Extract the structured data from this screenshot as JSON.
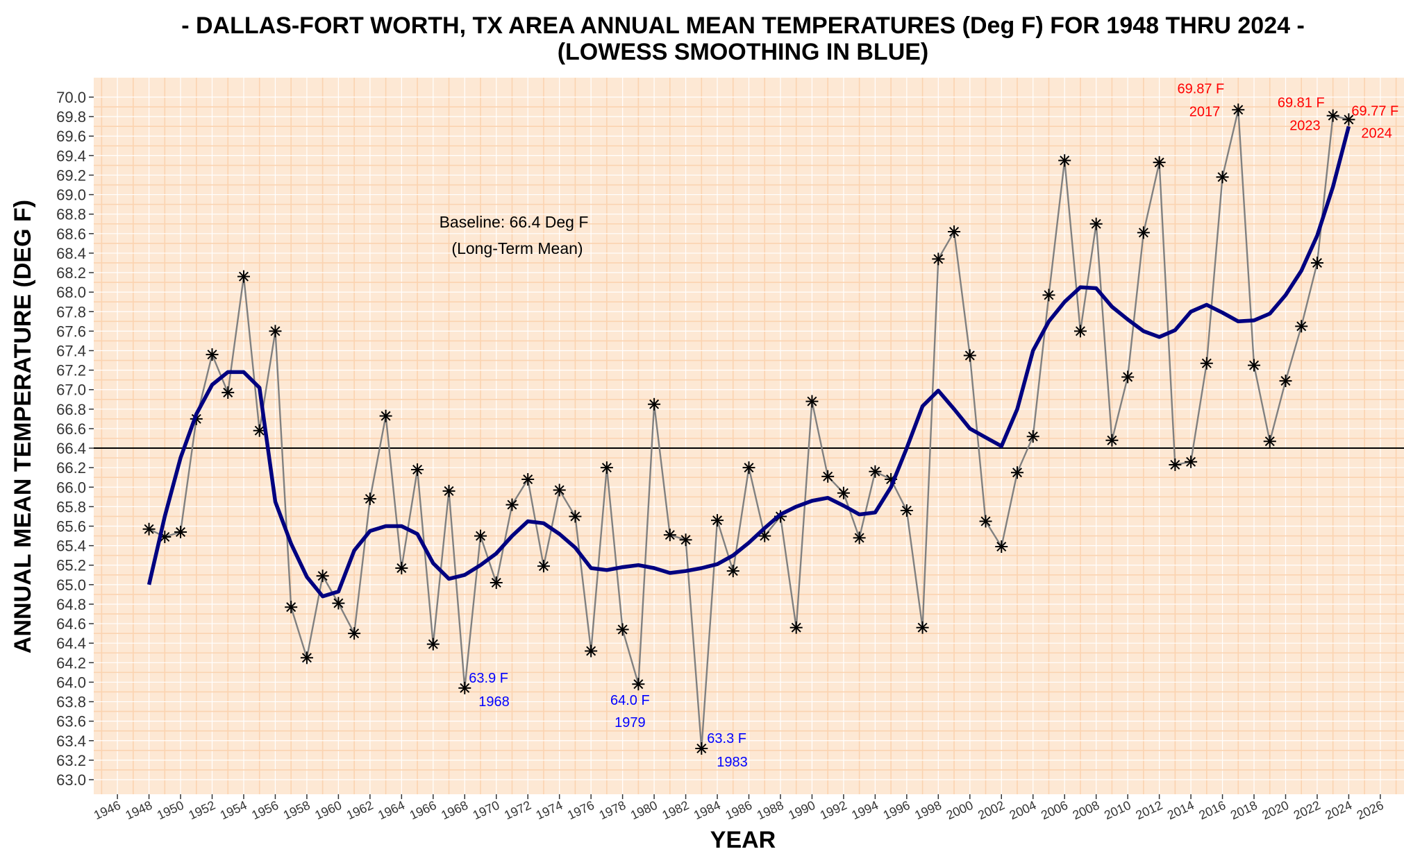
{
  "title_line1": "- DALLAS-FORT WORTH, TX AREA ANNUAL MEAN TEMPERATURES (Deg F) FOR 1948 THRU 2024 -",
  "title_line2": "(LOWESS SMOOTHING IN BLUE)",
  "colors": {
    "panel": "#fde8d4",
    "grid": "#fbd3b0",
    "data_line": "#808080",
    "marker": "#000000",
    "smooth": "#000080",
    "baseline": "#000000",
    "high_annotation": "#ff0000",
    "low_annotation": "#0000ff"
  },
  "chart_data": {
    "type": "line",
    "title": "- DALLAS-FORT WORTH, TX AREA ANNUAL MEAN TEMPERATURES (Deg F) FOR 1948 THRU 2024 - (LOWESS SMOOTHING IN BLUE)",
    "xlabel": "YEAR",
    "ylabel": "ANNUAL MEAN TEMPERATURE (DEG F)",
    "xlim": [
      1944.5,
      2027.5
    ],
    "ylim": [
      63.0,
      70.0
    ],
    "x_ticks": [
      1946,
      1948,
      1950,
      1952,
      1954,
      1956,
      1958,
      1960,
      1962,
      1964,
      1966,
      1968,
      1970,
      1972,
      1974,
      1976,
      1978,
      1980,
      1982,
      1984,
      1986,
      1988,
      1990,
      1992,
      1994,
      1996,
      1998,
      2000,
      2002,
      2004,
      2006,
      2008,
      2010,
      2012,
      2014,
      2016,
      2018,
      2020,
      2022,
      2024,
      2026
    ],
    "y_ticks": [
      63.0,
      63.2,
      63.4,
      63.6,
      63.8,
      64.0,
      64.2,
      64.4,
      64.6,
      64.8,
      65.0,
      65.2,
      65.4,
      65.6,
      65.8,
      66.0,
      66.2,
      66.4,
      66.6,
      66.8,
      67.0,
      67.2,
      67.4,
      67.6,
      67.8,
      68.0,
      68.2,
      68.4,
      68.6,
      68.8,
      69.0,
      69.2,
      69.4,
      69.6,
      69.8,
      70.0
    ],
    "grid": true,
    "baseline": {
      "value": 66.4,
      "label_line1": "Baseline: 66.4 Deg F",
      "label_line2": "(Long-Term Mean)"
    },
    "series": [
      {
        "style": "line-with-asterisk-markers",
        "x": [
          1948,
          1949,
          1950,
          1951,
          1952,
          1953,
          1954,
          1955,
          1956,
          1957,
          1958,
          1959,
          1960,
          1961,
          1962,
          1963,
          1964,
          1965,
          1966,
          1967,
          1968,
          1969,
          1970,
          1971,
          1972,
          1973,
          1974,
          1975,
          1976,
          1977,
          1978,
          1979,
          1980,
          1981,
          1982,
          1983,
          1984,
          1985,
          1986,
          1987,
          1988,
          1989,
          1990,
          1991,
          1992,
          1993,
          1994,
          1995,
          1996,
          1997,
          1998,
          1999,
          2000,
          2001,
          2002,
          2003,
          2004,
          2005,
          2006,
          2007,
          2008,
          2009,
          2010,
          2011,
          2012,
          2013,
          2014,
          2015,
          2016,
          2017,
          2018,
          2019,
          2020,
          2021,
          2022,
          2023,
          2024
        ],
        "values": [
          65.57,
          65.49,
          65.54,
          66.7,
          67.36,
          66.97,
          68.16,
          66.58,
          67.6,
          64.77,
          64.25,
          65.09,
          64.81,
          64.5,
          65.88,
          66.73,
          65.17,
          66.18,
          64.39,
          65.96,
          63.94,
          65.5,
          65.02,
          65.82,
          66.08,
          65.19,
          65.97,
          65.7,
          64.32,
          66.2,
          64.54,
          63.98,
          66.85,
          65.51,
          65.46,
          63.32,
          65.66,
          65.14,
          66.2,
          65.5,
          65.7,
          64.56,
          66.88,
          66.11,
          65.94,
          65.48,
          66.16,
          66.08,
          65.76,
          64.56,
          68.34,
          68.62,
          67.35,
          65.65,
          65.39,
          66.15,
          66.52,
          67.97,
          69.35,
          67.6,
          68.7,
          66.48,
          67.13,
          68.61,
          69.33,
          66.23,
          66.26,
          67.27,
          69.18,
          69.87,
          67.25,
          66.47,
          67.09,
          67.65,
          68.3,
          69.81,
          69.77
        ]
      },
      {
        "name": "LOWESS SMOOTHING",
        "style": "thick-line",
        "x": [
          1948,
          1949,
          1950,
          1951,
          1952,
          1953,
          1954,
          1955,
          1956,
          1957,
          1958,
          1959,
          1960,
          1961,
          1962,
          1963,
          1964,
          1965,
          1966,
          1967,
          1968,
          1969,
          1970,
          1971,
          1972,
          1973,
          1974,
          1975,
          1976,
          1977,
          1978,
          1979,
          1980,
          1981,
          1982,
          1983,
          1984,
          1985,
          1986,
          1987,
          1988,
          1989,
          1990,
          1991,
          1992,
          1993,
          1994,
          1995,
          1996,
          1997,
          1998,
          1999,
          2000,
          2001,
          2002,
          2003,
          2004,
          2005,
          2006,
          2007,
          2008,
          2009,
          2010,
          2011,
          2012,
          2013,
          2014,
          2015,
          2016,
          2017,
          2018,
          2019,
          2020,
          2021,
          2022,
          2023,
          2024
        ],
        "values": [
          65.0,
          65.7,
          66.3,
          66.75,
          67.05,
          67.18,
          67.18,
          67.02,
          65.85,
          65.42,
          65.08,
          64.88,
          64.93,
          65.35,
          65.55,
          65.6,
          65.6,
          65.52,
          65.22,
          65.06,
          65.1,
          65.2,
          65.32,
          65.5,
          65.65,
          65.63,
          65.52,
          65.38,
          65.17,
          65.15,
          65.18,
          65.2,
          65.17,
          65.12,
          65.14,
          65.17,
          65.21,
          65.3,
          65.43,
          65.58,
          65.72,
          65.8,
          65.86,
          65.89,
          65.81,
          65.72,
          65.74,
          66.0,
          66.4,
          66.83,
          66.99,
          66.8,
          66.6,
          66.51,
          66.42,
          66.8,
          67.4,
          67.7,
          67.9,
          68.05,
          68.04,
          67.85,
          67.72,
          67.6,
          67.54,
          67.61,
          67.8,
          67.87,
          67.79,
          67.7,
          67.71,
          67.78,
          67.97,
          68.22,
          68.58,
          69.08,
          69.7
        ]
      }
    ],
    "annotations": [
      {
        "kind": "high",
        "value_text": "69.87 F",
        "year_text": "2017"
      },
      {
        "kind": "high",
        "value_text": "69.81 F",
        "year_text": "2023"
      },
      {
        "kind": "high",
        "value_text": "69.77 F",
        "year_text": "2024"
      },
      {
        "kind": "low",
        "value_text": "63.9 F",
        "year_text": "1968"
      },
      {
        "kind": "low",
        "value_text": "64.0 F",
        "year_text": "1979"
      },
      {
        "kind": "low",
        "value_text": "63.3 F",
        "year_text": "1983"
      }
    ]
  }
}
